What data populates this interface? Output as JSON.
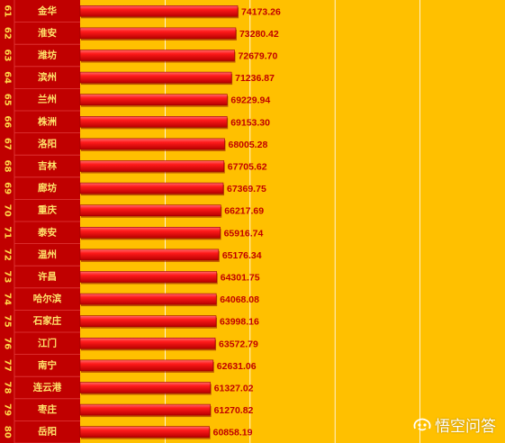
{
  "chart_data": {
    "type": "bar",
    "orientation": "horizontal",
    "grid": true,
    "colors": {
      "background": "#ffc000",
      "label_panel": "#c00000",
      "bar": "#ff1a1a",
      "bar_dark": "#b80000",
      "value_text": "#c00000",
      "gridline": "#ffffff"
    },
    "xlim": [
      0,
      200000
    ],
    "rows": [
      {
        "rank": "61",
        "city": "金华",
        "value": 74173.26,
        "label": "74173.26"
      },
      {
        "rank": "62",
        "city": "淮安",
        "value": 73280.42,
        "label": "73280.42"
      },
      {
        "rank": "63",
        "city": "潍坊",
        "value": 72679.7,
        "label": "72679.70"
      },
      {
        "rank": "64",
        "city": "滨州",
        "value": 71236.87,
        "label": "71236.87"
      },
      {
        "rank": "65",
        "city": "兰州",
        "value": 69229.94,
        "label": "69229.94"
      },
      {
        "rank": "66",
        "city": "株洲",
        "value": 69153.3,
        "label": "69153.30"
      },
      {
        "rank": "67",
        "city": "洛阳",
        "value": 68005.28,
        "label": "68005.28"
      },
      {
        "rank": "68",
        "city": "吉林",
        "value": 67705.62,
        "label": "67705.62"
      },
      {
        "rank": "69",
        "city": "廊坊",
        "value": 67369.75,
        "label": "67369.75"
      },
      {
        "rank": "70",
        "city": "重庆",
        "value": 66217.69,
        "label": "66217.69"
      },
      {
        "rank": "71",
        "city": "泰安",
        "value": 65916.74,
        "label": "65916.74"
      },
      {
        "rank": "72",
        "city": "温州",
        "value": 65176.34,
        "label": "65176.34"
      },
      {
        "rank": "73",
        "city": "许昌",
        "value": 64301.75,
        "label": "64301.75"
      },
      {
        "rank": "74",
        "city": "哈尔滨",
        "value": 64068.08,
        "label": "64068.08"
      },
      {
        "rank": "75",
        "city": "石家庄",
        "value": 63998.16,
        "label": "63998.16"
      },
      {
        "rank": "76",
        "city": "江门",
        "value": 63572.79,
        "label": "63572.79"
      },
      {
        "rank": "77",
        "city": "南宁",
        "value": 62631.06,
        "label": "62631.06"
      },
      {
        "rank": "78",
        "city": "连云港",
        "value": 61327.02,
        "label": "61327.02"
      },
      {
        "rank": "79",
        "city": "枣庄",
        "value": 61270.82,
        "label": "61270.82"
      },
      {
        "rank": "80",
        "city": "岳阳",
        "value": 60858.19,
        "label": "60858.19"
      }
    ]
  },
  "watermark": {
    "text": "悟空问答",
    "icon": "wukong-logo-icon"
  }
}
